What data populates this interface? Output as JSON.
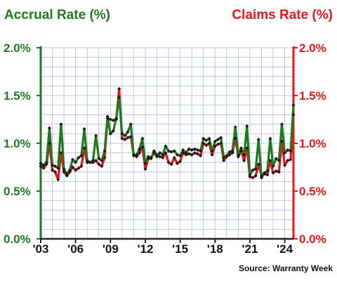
{
  "chart_data": {
    "type": "line",
    "title_left": "Accrual Rate (%)",
    "title_right": "Claims Rate (%)",
    "source": "Source: Warranty Week",
    "y_ticks_left": [
      "0.0%",
      "0.5%",
      "1.0%",
      "1.5%",
      "2.0%"
    ],
    "y_ticks_right": [
      "0.0%",
      "0.5%",
      "1.0%",
      "1.5%",
      "2.0%"
    ],
    "y_tick_values": [
      0,
      0.5,
      1.0,
      1.5,
      2.0
    ],
    "ylim": [
      0,
      2.0
    ],
    "x_ticks": [
      {
        "label": "'03",
        "value": 2003
      },
      {
        "label": "'06",
        "value": 2006
      },
      {
        "label": "'09",
        "value": 2009
      },
      {
        "label": "'12",
        "value": 2012
      },
      {
        "label": "'15",
        "value": 2015
      },
      {
        "label": "'18",
        "value": 2018
      },
      {
        "label": "'21",
        "value": 2021
      },
      {
        "label": "'24",
        "value": 2024
      }
    ],
    "xlim": [
      2003,
      2024.75
    ],
    "grid": true,
    "colors": {
      "accrual": "#1f7a1f",
      "claims": "#e8141b",
      "grid": "#a9b8dc",
      "marker": "#1a1a1a"
    },
    "series": [
      {
        "name": "Accrual Rate (%)",
        "axis": "left",
        "color": "#1f7a1f",
        "x": [
          2003,
          2003.25,
          2003.5,
          2003.75,
          2004,
          2004.25,
          2004.5,
          2004.75,
          2005,
          2005.25,
          2005.5,
          2005.75,
          2006,
          2006.25,
          2006.5,
          2006.75,
          2007,
          2007.25,
          2007.5,
          2007.75,
          2008,
          2008.25,
          2008.5,
          2008.75,
          2009,
          2009.25,
          2009.5,
          2009.75,
          2010,
          2010.25,
          2010.5,
          2010.75,
          2011,
          2011.25,
          2011.5,
          2011.75,
          2012,
          2012.25,
          2012.5,
          2012.75,
          2013,
          2013.25,
          2013.5,
          2013.75,
          2014,
          2014.25,
          2014.5,
          2014.75,
          2015,
          2015.25,
          2015.5,
          2015.75,
          2016,
          2016.25,
          2016.5,
          2016.75,
          2017,
          2017.25,
          2017.5,
          2017.75,
          2018,
          2018.25,
          2018.5,
          2018.75,
          2019,
          2019.25,
          2019.5,
          2019.75,
          2020,
          2020.25,
          2020.5,
          2020.75,
          2021,
          2021.25,
          2021.5,
          2021.75,
          2022,
          2022.25,
          2022.5,
          2022.75,
          2023,
          2023.25,
          2023.5,
          2023.75,
          2024,
          2024.25,
          2024.5,
          2024.75
        ],
        "values": [
          0.79,
          0.77,
          0.8,
          1.16,
          0.77,
          0.76,
          0.74,
          1.2,
          0.73,
          0.68,
          0.72,
          0.83,
          0.8,
          0.85,
          0.87,
          1.15,
          0.82,
          0.8,
          0.82,
          1.08,
          0.84,
          0.82,
          0.92,
          1.28,
          1.1,
          1.13,
          1.26,
          1.48,
          1.1,
          1.08,
          1.12,
          1.2,
          0.87,
          0.88,
          0.94,
          1.05,
          0.79,
          0.86,
          0.85,
          0.9,
          0.86,
          0.9,
          0.88,
          0.97,
          0.92,
          0.91,
          0.92,
          0.88,
          0.87,
          0.93,
          0.9,
          0.94,
          0.93,
          0.94,
          0.93,
          0.92,
          1.05,
          1.03,
          1.05,
          0.92,
          1.02,
          1.04,
          1.06,
          0.85,
          0.87,
          0.91,
          0.92,
          1.17,
          0.88,
          0.95,
          0.88,
          1.18,
          0.67,
          0.72,
          0.73,
          1.04,
          0.64,
          0.69,
          0.71,
          1.05,
          0.76,
          0.84,
          0.82,
          1.2,
          0.9,
          0.93,
          0.92,
          1.4
        ]
      },
      {
        "name": "Claims Rate (%)",
        "axis": "right",
        "color": "#e8141b",
        "x": [
          2003,
          2003.25,
          2003.5,
          2003.75,
          2004,
          2004.25,
          2004.5,
          2004.75,
          2005,
          2005.25,
          2005.5,
          2005.75,
          2006,
          2006.25,
          2006.5,
          2006.75,
          2007,
          2007.25,
          2007.5,
          2007.75,
          2008,
          2008.25,
          2008.5,
          2008.75,
          2009,
          2009.25,
          2009.5,
          2009.75,
          2010,
          2010.25,
          2010.5,
          2010.75,
          2011,
          2011.25,
          2011.5,
          2011.75,
          2012,
          2012.25,
          2012.5,
          2012.75,
          2013,
          2013.25,
          2013.5,
          2013.75,
          2014,
          2014.25,
          2014.5,
          2014.75,
          2015,
          2015.25,
          2015.5,
          2015.75,
          2016,
          2016.25,
          2016.5,
          2016.75,
          2017,
          2017.25,
          2017.5,
          2017.75,
          2018,
          2018.25,
          2018.5,
          2018.75,
          2019,
          2019.25,
          2019.5,
          2019.75,
          2020,
          2020.25,
          2020.5,
          2020.75,
          2021,
          2021.25,
          2021.5,
          2021.75,
          2022,
          2022.25,
          2022.5,
          2022.75,
          2023,
          2023.25,
          2023.5,
          2023.75,
          2024,
          2024.25,
          2024.5,
          2024.75
        ],
        "values": [
          0.76,
          0.74,
          0.78,
          1.0,
          0.72,
          0.7,
          0.62,
          0.9,
          0.7,
          0.66,
          0.7,
          0.75,
          0.72,
          0.74,
          0.76,
          0.95,
          0.8,
          0.8,
          0.8,
          0.82,
          0.78,
          0.76,
          0.85,
          1.26,
          1.25,
          1.24,
          1.25,
          1.57,
          1.05,
          1.04,
          1.06,
          1.07,
          0.88,
          0.86,
          0.9,
          0.96,
          0.73,
          0.84,
          0.84,
          0.92,
          0.88,
          0.86,
          0.85,
          0.9,
          0.8,
          0.78,
          0.85,
          0.79,
          0.81,
          0.9,
          0.88,
          0.89,
          0.88,
          0.9,
          0.89,
          0.87,
          1.0,
          0.98,
          1.0,
          0.88,
          0.97,
          0.99,
          1.0,
          0.82,
          0.86,
          0.88,
          0.9,
          1.05,
          0.86,
          0.92,
          0.82,
          0.95,
          0.65,
          0.64,
          0.66,
          0.78,
          0.66,
          0.68,
          0.67,
          0.82,
          0.69,
          0.71,
          0.7,
          1.02,
          0.77,
          0.82,
          0.83,
          1.3
        ]
      }
    ]
  }
}
